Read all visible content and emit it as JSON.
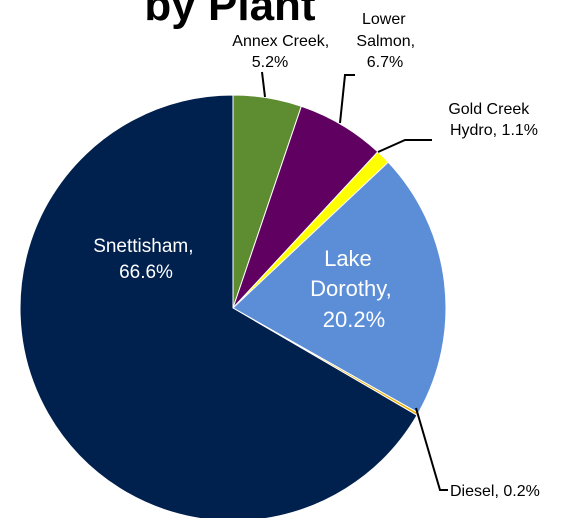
{
  "chart_data": {
    "type": "pie",
    "title": "by Plant",
    "slices": [
      {
        "name": "Annex Creek",
        "value": 5.2,
        "label_lines": [
          "Annex Creek,",
          "5.2%"
        ],
        "color": "#5e8c31"
      },
      {
        "name": "Lower Salmon",
        "value": 6.7,
        "label_lines": [
          "Lower",
          "Salmon,",
          "6.7%"
        ],
        "color": "#600060"
      },
      {
        "name": "Gold Creek Hydro",
        "value": 1.1,
        "label_lines": [
          "Gold Creek",
          "Hydro, 1.1%"
        ],
        "color": "#ffff00"
      },
      {
        "name": "Lake Dorothy",
        "value": 20.2,
        "label_lines": [
          "Lake",
          "Dorothy,",
          "20.2%"
        ],
        "color": "#5b8ed6"
      },
      {
        "name": "Diesel",
        "value": 0.2,
        "label_lines": [
          "Diesel, 0.2%"
        ],
        "color": "#f0b000"
      },
      {
        "name": "Snettisham",
        "value": 66.6,
        "label_lines": [
          "Snettisham,",
          "66.6%"
        ],
        "color": "#00204e"
      }
    ]
  }
}
